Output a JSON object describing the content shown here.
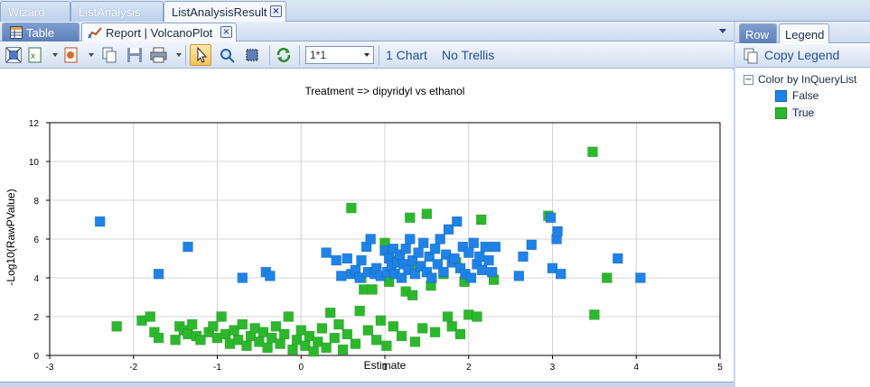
{
  "doc_tabs": [
    {
      "label": "Wizard"
    },
    {
      "label": "ListAnalysis"
    },
    {
      "label": "ListAnalysisResult",
      "close": "×"
    }
  ],
  "sub_tabs": [
    {
      "label": "Table"
    },
    {
      "label": "Report | VolcanoPlot",
      "close": "×"
    }
  ],
  "toolbar": {
    "layout_value": "1*1",
    "chart_count": "1 Chart",
    "trellis": "No Trellis"
  },
  "right_panel": {
    "tabs": [
      {
        "label": "Row"
      },
      {
        "label": "Legend"
      }
    ],
    "copy_legend": "Copy Legend",
    "legend_title": "Color by InQueryList",
    "toggle": "−",
    "items": [
      {
        "label": "False",
        "color": "#1e82e6"
      },
      {
        "label": "True",
        "color": "#2cb82c"
      }
    ]
  },
  "colors": {
    "false_points": "#1e82e6",
    "true_points": "#2cb82c",
    "accent": "#1f4f96"
  },
  "chart_data": {
    "type": "scatter",
    "title": "Treatment => dipyridyl vs ethanol",
    "xlabel": "Estimate",
    "ylabel": "-Log10(RawPValue)",
    "xlim": [
      -3,
      5
    ],
    "ylim": [
      0,
      12
    ],
    "xticks": [
      -3,
      -2,
      -1,
      0,
      1,
      2,
      3,
      4,
      5
    ],
    "yticks": [
      0,
      2,
      4,
      6,
      8,
      10,
      12
    ],
    "grid": true,
    "series": [
      {
        "name": "False",
        "color": "#1e82e6",
        "points": [
          [
            -2.4,
            6.9
          ],
          [
            -1.7,
            4.2
          ],
          [
            -1.35,
            5.6
          ],
          [
            -0.7,
            4.0
          ],
          [
            -0.42,
            4.3
          ],
          [
            -0.37,
            4.1
          ],
          [
            0.3,
            5.3
          ],
          [
            0.42,
            4.9
          ],
          [
            0.48,
            4.1
          ],
          [
            0.55,
            5.0
          ],
          [
            0.6,
            4.2
          ],
          [
            0.65,
            4.4
          ],
          [
            0.7,
            4.0
          ],
          [
            0.72,
            4.9
          ],
          [
            0.78,
            5.6
          ],
          [
            0.8,
            4.3
          ],
          [
            0.83,
            6.0
          ],
          [
            0.88,
            4.2
          ],
          [
            0.9,
            4.5
          ],
          [
            0.95,
            4.1
          ],
          [
            1.0,
            5.4
          ],
          [
            1.03,
            4.3
          ],
          [
            1.05,
            5.0
          ],
          [
            1.08,
            4.6
          ],
          [
            1.1,
            5.5
          ],
          [
            1.12,
            4.2
          ],
          [
            1.15,
            4.8
          ],
          [
            1.18,
            5.2
          ],
          [
            1.2,
            4.0
          ],
          [
            1.22,
            4.7
          ],
          [
            1.25,
            5.5
          ],
          [
            1.28,
            4.4
          ],
          [
            1.3,
            6.0
          ],
          [
            1.33,
            4.9
          ],
          [
            1.36,
            4.2
          ],
          [
            1.4,
            5.3
          ],
          [
            1.43,
            4.6
          ],
          [
            1.46,
            5.8
          ],
          [
            1.5,
            4.3
          ],
          [
            1.53,
            5.1
          ],
          [
            1.56,
            4.0
          ],
          [
            1.6,
            5.5
          ],
          [
            1.63,
            4.7
          ],
          [
            1.66,
            6.0
          ],
          [
            1.7,
            4.3
          ],
          [
            1.73,
            5.2
          ],
          [
            1.76,
            6.5
          ],
          [
            1.8,
            4.8
          ],
          [
            1.83,
            5.0
          ],
          [
            1.86,
            6.9
          ],
          [
            1.9,
            4.5
          ],
          [
            1.93,
            5.6
          ],
          [
            1.96,
            4.2
          ],
          [
            2.0,
            5.3
          ],
          [
            2.03,
            4.0
          ],
          [
            2.06,
            5.8
          ],
          [
            2.1,
            4.7
          ],
          [
            2.13,
            5.1
          ],
          [
            2.16,
            4.4
          ],
          [
            2.2,
            5.6
          ],
          [
            2.24,
            4.9
          ],
          [
            2.28,
            4.3
          ],
          [
            2.32,
            5.6
          ],
          [
            2.6,
            4.1
          ],
          [
            2.65,
            5.1
          ],
          [
            2.75,
            5.7
          ],
          [
            2.98,
            7.1
          ],
          [
            3.0,
            4.5
          ],
          [
            3.05,
            6.0
          ],
          [
            3.06,
            6.4
          ],
          [
            3.1,
            4.2
          ],
          [
            3.78,
            5.0
          ],
          [
            4.05,
            4.0
          ]
        ]
      },
      {
        "name": "True",
        "color": "#2cb82c",
        "points": [
          [
            -2.2,
            1.5
          ],
          [
            -1.9,
            1.8
          ],
          [
            -1.8,
            2.0
          ],
          [
            -1.75,
            1.2
          ],
          [
            -1.7,
            0.9
          ],
          [
            -1.5,
            0.8
          ],
          [
            -1.45,
            1.5
          ],
          [
            -1.4,
            1.3
          ],
          [
            -1.35,
            1.1
          ],
          [
            -1.3,
            1.6
          ],
          [
            -1.25,
            1.0
          ],
          [
            -1.2,
            0.8
          ],
          [
            -1.1,
            1.2
          ],
          [
            -1.05,
            1.5
          ],
          [
            -1.0,
            0.9
          ],
          [
            -0.95,
            2.0
          ],
          [
            -0.9,
            1.1
          ],
          [
            -0.85,
            0.6
          ],
          [
            -0.8,
            1.3
          ],
          [
            -0.75,
            0.8
          ],
          [
            -0.7,
            1.6
          ],
          [
            -0.65,
            0.5
          ],
          [
            -0.6,
            1.0
          ],
          [
            -0.55,
            1.4
          ],
          [
            -0.5,
            0.7
          ],
          [
            -0.45,
            1.2
          ],
          [
            -0.4,
            0.4
          ],
          [
            -0.35,
            0.9
          ],
          [
            -0.3,
            1.5
          ],
          [
            -0.25,
            0.6
          ],
          [
            -0.2,
            1.1
          ],
          [
            -0.15,
            2.0
          ],
          [
            -0.1,
            0.3
          ],
          [
            -0.05,
            0.8
          ],
          [
            0.0,
            1.3
          ],
          [
            0.05,
            0.5
          ],
          [
            0.1,
            1.0
          ],
          [
            0.15,
            0.2
          ],
          [
            0.2,
            0.7
          ],
          [
            0.25,
            1.4
          ],
          [
            0.3,
            0.4
          ],
          [
            0.35,
            2.2
          ],
          [
            0.4,
            0.9
          ],
          [
            0.45,
            1.6
          ],
          [
            0.5,
            0.3
          ],
          [
            0.55,
            1.1
          ],
          [
            0.6,
            7.6
          ],
          [
            0.65,
            0.6
          ],
          [
            0.7,
            2.3
          ],
          [
            0.72,
            4.0
          ],
          [
            0.75,
            3.4
          ],
          [
            0.8,
            1.3
          ],
          [
            0.85,
            3.4
          ],
          [
            0.9,
            0.8
          ],
          [
            0.95,
            1.8
          ],
          [
            1.0,
            5.8
          ],
          [
            1.02,
            0.5
          ],
          [
            1.05,
            3.8
          ],
          [
            1.1,
            1.5
          ],
          [
            1.15,
            4.9
          ],
          [
            1.2,
            1.0
          ],
          [
            1.25,
            3.3
          ],
          [
            1.3,
            7.1
          ],
          [
            1.33,
            3.1
          ],
          [
            1.36,
            0.7
          ],
          [
            1.4,
            4.6
          ],
          [
            1.45,
            1.4
          ],
          [
            1.5,
            7.3
          ],
          [
            1.55,
            3.6
          ],
          [
            1.6,
            1.2
          ],
          [
            1.7,
            4.2
          ],
          [
            1.75,
            2.0
          ],
          [
            1.8,
            1.5
          ],
          [
            1.85,
            4.8
          ],
          [
            1.9,
            1.1
          ],
          [
            1.95,
            3.8
          ],
          [
            2.0,
            2.1
          ],
          [
            2.1,
            2.0
          ],
          [
            2.15,
            7.0
          ],
          [
            2.3,
            3.9
          ],
          [
            2.95,
            7.2
          ],
          [
            3.48,
            10.5
          ],
          [
            3.5,
            2.1
          ],
          [
            3.65,
            4.0
          ]
        ]
      }
    ]
  }
}
